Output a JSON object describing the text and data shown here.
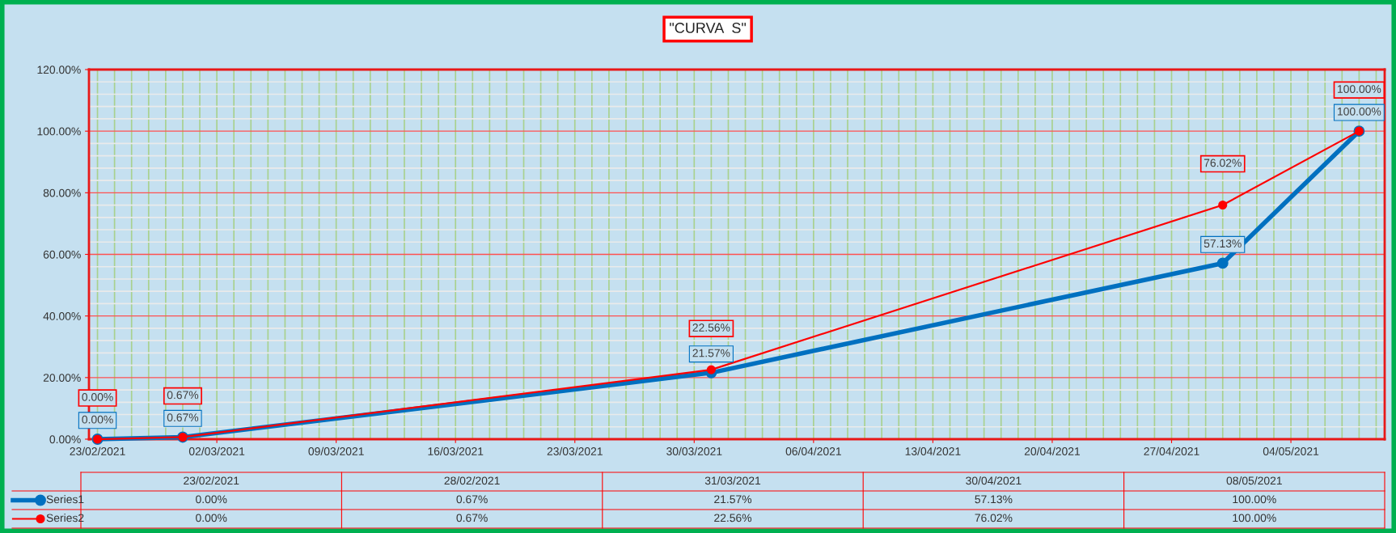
{
  "chart_data": {
    "type": "line",
    "title": "\"CURVA  S\"",
    "x": [
      "2021-02-23",
      "2021-02-28",
      "2021-03-31",
      "2021-04-30",
      "2021-05-08"
    ],
    "series": [
      {
        "name": "Series1",
        "color": "#0070c0",
        "values": [
          0,
          0.67,
          21.57,
          57.13,
          100
        ],
        "value_labels": [
          "0.00%",
          "0.67%",
          "21.57%",
          "57.13%",
          "100.00%"
        ]
      },
      {
        "name": "Series2",
        "color": "#ff0000",
        "values": [
          0,
          0.67,
          22.56,
          76.02,
          100
        ],
        "value_labels": [
          "0.00%",
          "0.67%",
          "22.56%",
          "76.02%",
          "100.00%"
        ]
      }
    ],
    "xlim": [
      "2021-02-22T12:00",
      "2021-05-09T12:00"
    ],
    "xticks": [
      {
        "value": "2021-02-23",
        "label": "23/02/2021"
      },
      {
        "value": "2021-03-02",
        "label": "02/03/2021"
      },
      {
        "value": "2021-03-09",
        "label": "09/03/2021"
      },
      {
        "value": "2021-03-16",
        "label": "16/03/2021"
      },
      {
        "value": "2021-03-23",
        "label": "23/03/2021"
      },
      {
        "value": "2021-03-30",
        "label": "30/03/2021"
      },
      {
        "value": "2021-04-06",
        "label": "06/04/2021"
      },
      {
        "value": "2021-04-13",
        "label": "13/04/2021"
      },
      {
        "value": "2021-04-20",
        "label": "20/04/2021"
      },
      {
        "value": "2021-04-27",
        "label": "27/04/2021"
      },
      {
        "value": "2021-05-04",
        "label": "04/05/2021"
      }
    ],
    "ylim": [
      0,
      120
    ],
    "yticks": [
      {
        "value": 0,
        "label": "0.00%"
      },
      {
        "value": 20,
        "label": "20.00%"
      },
      {
        "value": 40,
        "label": "40.00%"
      },
      {
        "value": 60,
        "label": "60.00%"
      },
      {
        "value": 80,
        "label": "80.00%"
      },
      {
        "value": 100,
        "label": "100.00%"
      },
      {
        "value": 120,
        "label": "120.00%"
      }
    ],
    "annotations": [
      "23/02/2021",
      "28/02/2021",
      "31/03/2021",
      "30/04/2021",
      "08/05/2021"
    ],
    "grid": true,
    "marker": "circle",
    "line_style": "solid",
    "legend": "bottom",
    "data_labels": true
  }
}
